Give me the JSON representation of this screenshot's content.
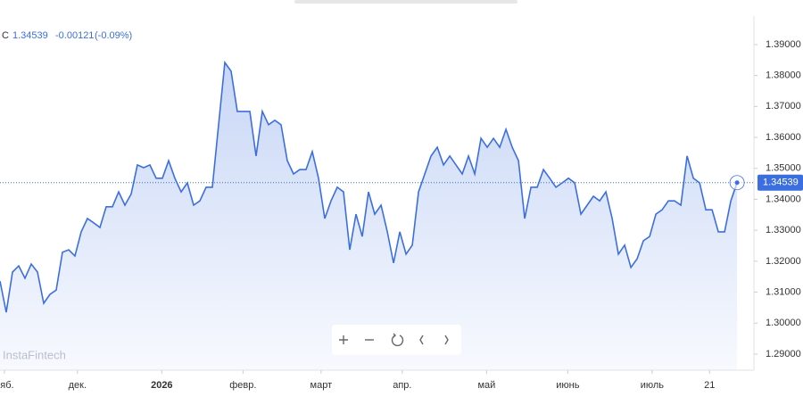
{
  "chart_data": {
    "type": "line",
    "header": {
      "symbol": "C",
      "change": "-0.00121",
      "change_pct": "(-0.09%)"
    },
    "watermark": "InstaFintech",
    "series": [
      {
        "color": "#3b6fe0",
        "values": [
          1.3136,
          1.3035,
          1.3165,
          1.3185,
          1.3145,
          1.3191,
          1.3165,
          1.3064,
          1.3093,
          1.3107,
          1.3229,
          1.3237,
          1.3217,
          1.3295,
          1.3338,
          1.3324,
          1.3309,
          1.3376,
          1.3376,
          1.3424,
          1.3381,
          1.3417,
          1.3511,
          1.3502,
          1.3511,
          1.3468,
          1.3468,
          1.3525,
          1.3468,
          1.3424,
          1.3453,
          1.3381,
          1.3395,
          1.3439,
          1.3439,
          1.3641,
          1.3842,
          1.3814,
          1.3684,
          1.3684,
          1.3684,
          1.354,
          1.3684,
          1.3641,
          1.3655,
          1.3641,
          1.3525,
          1.3482,
          1.3496,
          1.3496,
          1.3554,
          1.3468,
          1.3338,
          1.3395,
          1.3439,
          1.3424,
          1.3237,
          1.3352,
          1.328,
          1.3424,
          1.3352,
          1.3381,
          1.3295,
          1.3194,
          1.3295,
          1.3223,
          1.3252,
          1.3424,
          1.3482,
          1.354,
          1.3568,
          1.3511,
          1.354,
          1.3511,
          1.3482,
          1.354,
          1.3482,
          1.3597,
          1.3568,
          1.3597,
          1.3568,
          1.3626,
          1.3568,
          1.3525,
          1.3338,
          1.3439,
          1.3439,
          1.3496,
          1.3468,
          1.3439,
          1.3453,
          1.3468,
          1.3453,
          1.3352,
          1.3381,
          1.341,
          1.3395,
          1.3424,
          1.3338,
          1.3223,
          1.3252,
          1.318,
          1.3208,
          1.3266,
          1.328,
          1.3352,
          1.3366,
          1.3395,
          1.3395,
          1.3381,
          1.354,
          1.3468,
          1.3453,
          1.3366,
          1.3366,
          1.3295,
          1.3295,
          1.3395,
          1.34539
        ]
      }
    ],
    "xlim": [
      0,
      120.7
    ],
    "xticks": [
      {
        "value": 0.7,
        "label": "ояб."
      },
      {
        "value": 12.4,
        "label": "дек."
      },
      {
        "value": 25.9,
        "label": "2026"
      },
      {
        "value": 38.9,
        "label": "февр."
      },
      {
        "value": 51.4,
        "label": "март"
      },
      {
        "value": 64.4,
        "label": "апр."
      },
      {
        "value": 77.9,
        "label": "май"
      },
      {
        "value": 90.9,
        "label": "июнь"
      },
      {
        "value": 104.4,
        "label": "июль"
      },
      {
        "value": 113.6,
        "label": "21"
      }
    ],
    "ylim": [
      1.2848,
      1.3992
    ],
    "yticks": [
      {
        "value": 1.29,
        "label": "1.29000"
      },
      {
        "value": 1.3,
        "label": "1.30000"
      },
      {
        "value": 1.31,
        "label": "1.31000"
      },
      {
        "value": 1.32,
        "label": "1.32000"
      },
      {
        "value": 1.33,
        "label": "1.33000"
      },
      {
        "value": 1.34,
        "label": "1.34000"
      },
      {
        "value": 1.35,
        "label": "1.35000"
      },
      {
        "value": 1.36,
        "label": "1.36000"
      },
      {
        "value": 1.37,
        "label": "1.37000"
      },
      {
        "value": 1.38,
        "label": "1.38000"
      },
      {
        "value": 1.39,
        "label": "1.39000"
      }
    ],
    "grid": false
  }
}
